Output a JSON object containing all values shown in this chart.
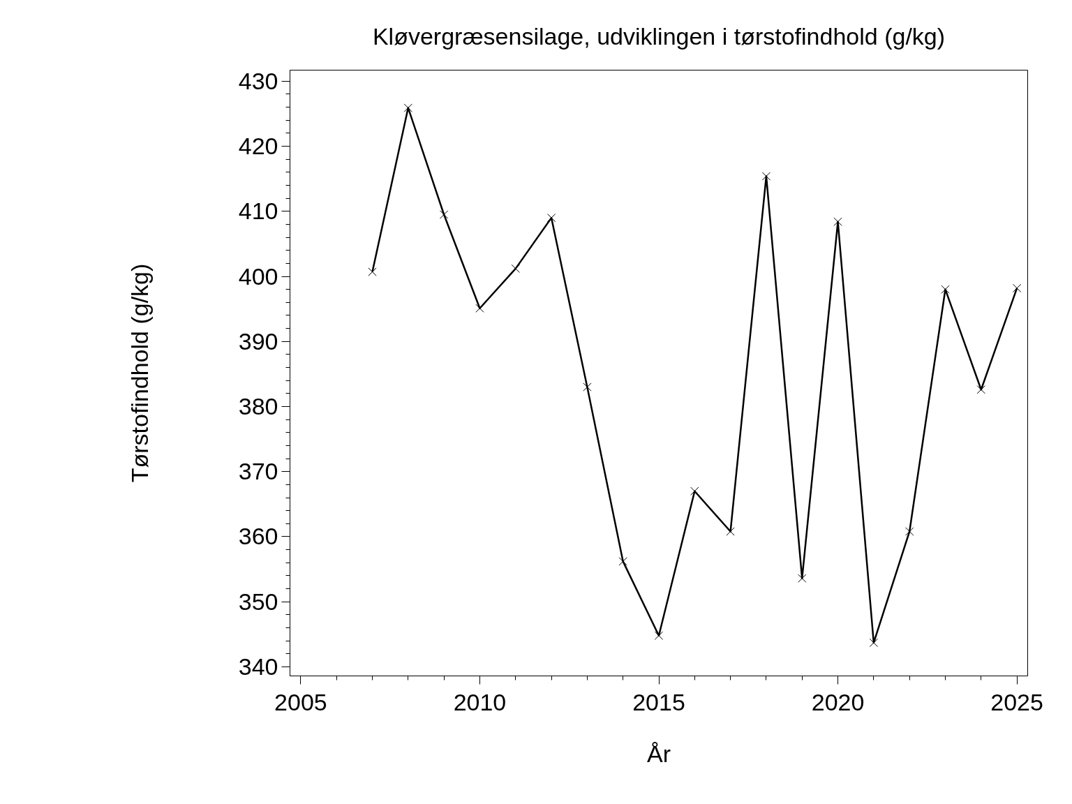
{
  "chart_data": {
    "type": "line",
    "title": "Kløvergræsensilage, udviklingen i tørstofindhold (g/kg)",
    "xlabel": "År",
    "ylabel": "Tørstofindhold (g/kg)",
    "x": [
      2007,
      2008,
      2009,
      2010,
      2011,
      2012,
      2013,
      2014,
      2015,
      2016,
      2017,
      2018,
      2019,
      2020,
      2021,
      2022,
      2023,
      2024,
      2025
    ],
    "series": [
      {
        "color": "#000000",
        "values": [
          400.7,
          425.9,
          409.5,
          395.1,
          401.2,
          409.0,
          383.0,
          356.2,
          344.8,
          367.0,
          360.8,
          415.4,
          353.6,
          408.4,
          343.7,
          360.8,
          398.0,
          382.6,
          398.2
        ]
      }
    ],
    "xlim": [
      2004.7,
      2025.3
    ],
    "xticks": [
      2005,
      2010,
      2015,
      2020,
      2025
    ],
    "ylim": [
      338.6,
      431.7
    ],
    "yticks": [
      340,
      350,
      360,
      370,
      380,
      390,
      400,
      410,
      420,
      430
    ],
    "marker": "cross",
    "line_style": "solid",
    "grid": false
  }
}
